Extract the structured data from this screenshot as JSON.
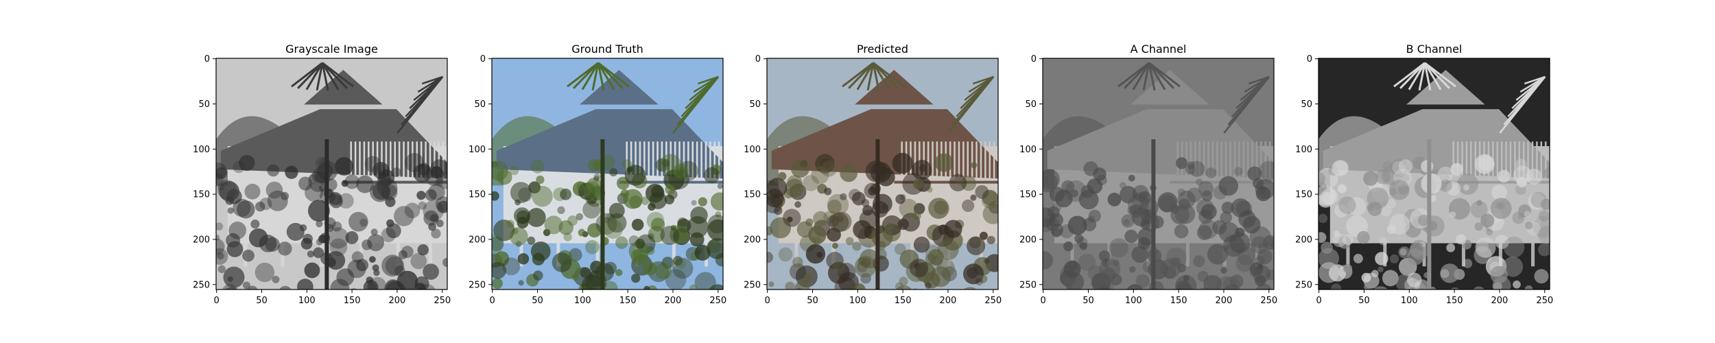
{
  "figure": {
    "background": "#ffffff"
  },
  "chart_data": [
    {
      "type": "heatmap",
      "title": "Grayscale Image",
      "xlim": [
        0,
        255
      ],
      "ylim": [
        255,
        0
      ],
      "xticks": [
        "0",
        "50",
        "100",
        "150",
        "200",
        "250"
      ],
      "yticks": [
        "0",
        "50",
        "100",
        "150",
        "200",
        "250"
      ],
      "colormap": "gray",
      "colors": {
        "sky": "#c8c8c8",
        "roof": "#5a5a5a",
        "wall": "#d7d7d7",
        "foliage": "#3a3a3a",
        "ground": "#2b2b2b"
      }
    },
    {
      "type": "heatmap",
      "title": "Ground Truth",
      "xlim": [
        0,
        255
      ],
      "ylim": [
        255,
        0
      ],
      "xticks": [
        "0",
        "50",
        "100",
        "150",
        "200",
        "250"
      ],
      "yticks": [
        "0",
        "50",
        "100",
        "150",
        "200",
        "250"
      ],
      "colormap": "rgb",
      "colors": {
        "sky": "#8fb6e0",
        "roof": "#5b6f86",
        "wall": "#d9dde2",
        "foliage": "#4f6b2d",
        "ground": "#2e3a1e"
      }
    },
    {
      "type": "heatmap",
      "title": "Predicted",
      "xlim": [
        0,
        255
      ],
      "ylim": [
        255,
        0
      ],
      "xticks": [
        "0",
        "50",
        "100",
        "150",
        "200",
        "250"
      ],
      "yticks": [
        "0",
        "50",
        "100",
        "150",
        "200",
        "250"
      ],
      "colormap": "rgb",
      "colors": {
        "sky": "#a7b6c4",
        "roof": "#6e5448",
        "wall": "#cfc9c4",
        "foliage": "#5a5a3a",
        "ground": "#342b22"
      }
    },
    {
      "type": "heatmap",
      "title": "A Channel",
      "xlim": [
        0,
        255
      ],
      "ylim": [
        255,
        0
      ],
      "xticks": [
        "0",
        "50",
        "100",
        "150",
        "200",
        "250"
      ],
      "yticks": [
        "0",
        "50",
        "100",
        "150",
        "200",
        "250"
      ],
      "colormap": "gray",
      "colors": {
        "sky": "#7a7a7a",
        "roof": "#8a8a8a",
        "wall": "#9a9a9a",
        "foliage": "#555555",
        "ground": "#4a4a4a"
      }
    },
    {
      "type": "heatmap",
      "title": "B Channel",
      "xlim": [
        0,
        255
      ],
      "ylim": [
        255,
        0
      ],
      "xticks": [
        "0",
        "50",
        "100",
        "150",
        "200",
        "250"
      ],
      "yticks": [
        "0",
        "50",
        "100",
        "150",
        "200",
        "250"
      ],
      "colormap": "gray",
      "colors": {
        "sky": "#262626",
        "roof": "#9c9c9c",
        "wall": "#bdbdbd",
        "foliage": "#d8d8d8",
        "ground": "#8e8e8e"
      }
    }
  ]
}
